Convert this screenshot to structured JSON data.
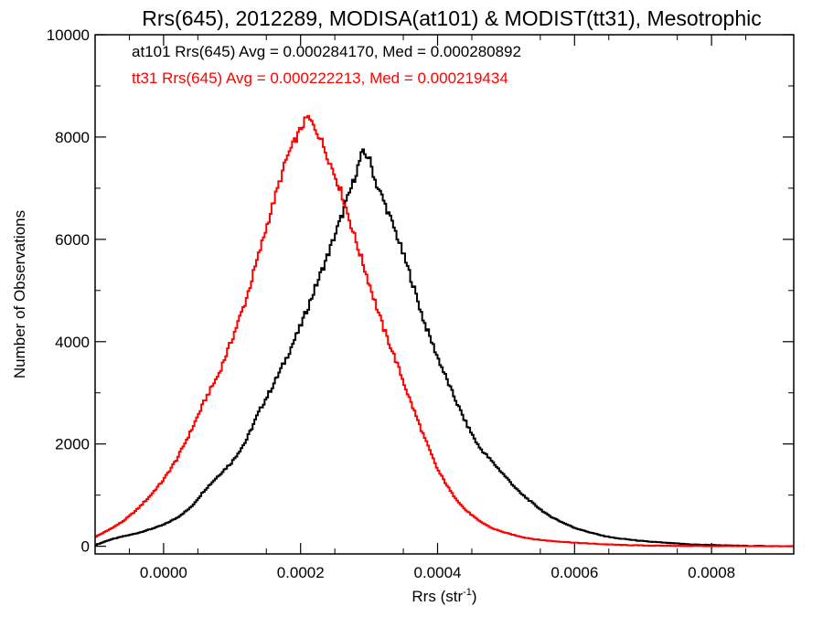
{
  "chart_data": {
    "type": "line",
    "step": true,
    "title": "Rrs(645), 2012289, MODISA(at101) & MODIST(tt31), Mesotrophic",
    "xlabel_main": "Rrs (str",
    "xlabel_sup": "-1",
    "xlabel_end": ")",
    "ylabel": "Number of Observations",
    "xlim": [
      -0.0001,
      0.00092
    ],
    "ylim": [
      -150,
      10000
    ],
    "xticks": [
      0.0,
      0.0002,
      0.0004,
      0.0006,
      0.0008
    ],
    "xtick_labels": [
      "0.0000",
      "0.0002",
      "0.0004",
      "0.0006",
      "0.0008"
    ],
    "yticks": [
      0,
      2000,
      4000,
      6000,
      8000,
      10000
    ],
    "ytick_labels": [
      "0",
      "2000",
      "4000",
      "6000",
      "8000",
      "10000"
    ],
    "grid": false,
    "legend_position": "top-left",
    "series": [
      {
        "name": "at101",
        "legend": "at101 Rrs(645) Avg = 0.000284170, Med = 0.000280892",
        "color": "#000000",
        "points": [
          [
            -0.0001,
            20
          ],
          [
            -8e-05,
            120
          ],
          [
            -6e-05,
            190
          ],
          [
            -4e-05,
            250
          ],
          [
            -2e-05,
            330
          ],
          [
            0.0,
            420
          ],
          [
            2e-05,
            560
          ],
          [
            4e-05,
            760
          ],
          [
            6e-05,
            1100
          ],
          [
            8e-05,
            1380
          ],
          [
            0.0001,
            1650
          ],
          [
            0.00012,
            2050
          ],
          [
            0.00014,
            2650
          ],
          [
            0.00016,
            3150
          ],
          [
            0.00018,
            3700
          ],
          [
            0.0002,
            4300
          ],
          [
            0.00022,
            5000
          ],
          [
            0.00024,
            5700
          ],
          [
            0.00026,
            6450
          ],
          [
            0.00028,
            7250
          ],
          [
            0.00029,
            7700
          ],
          [
            0.0003,
            7600
          ],
          [
            0.00031,
            7100
          ],
          [
            0.00032,
            6800
          ],
          [
            0.00034,
            6100
          ],
          [
            0.00036,
            5300
          ],
          [
            0.00038,
            4400
          ],
          [
            0.0004,
            3700
          ],
          [
            0.00042,
            3050
          ],
          [
            0.00044,
            2450
          ],
          [
            0.00046,
            1950
          ],
          [
            0.00048,
            1650
          ],
          [
            0.0005,
            1350
          ],
          [
            0.00052,
            1050
          ],
          [
            0.00054,
            830
          ],
          [
            0.00056,
            620
          ],
          [
            0.00058,
            480
          ],
          [
            0.0006,
            360
          ],
          [
            0.00062,
            280
          ],
          [
            0.00064,
            210
          ],
          [
            0.00066,
            160
          ],
          [
            0.00068,
            130
          ],
          [
            0.0007,
            100
          ],
          [
            0.00072,
            80
          ],
          [
            0.00074,
            60
          ],
          [
            0.00076,
            45
          ],
          [
            0.00078,
            30
          ],
          [
            0.0008,
            25
          ],
          [
            0.00082,
            15
          ],
          [
            0.00084,
            10
          ],
          [
            0.00086,
            5
          ],
          [
            0.00088,
            5
          ],
          [
            0.0009,
            0
          ],
          [
            0.00092,
            0
          ]
        ]
      },
      {
        "name": "tt31",
        "legend": "tt31 Rrs(645) Avg = 0.000222213, Med = 0.000219434",
        "color": "#ff0000",
        "points": [
          [
            -0.0001,
            180
          ],
          [
            -8e-05,
            320
          ],
          [
            -6e-05,
            480
          ],
          [
            -4e-05,
            700
          ],
          [
            -2e-05,
            980
          ],
          [
            0.0,
            1300
          ],
          [
            2e-05,
            1720
          ],
          [
            4e-05,
            2250
          ],
          [
            6e-05,
            2850
          ],
          [
            8e-05,
            3350
          ],
          [
            0.0001,
            4050
          ],
          [
            0.00012,
            4800
          ],
          [
            0.00014,
            5750
          ],
          [
            0.00016,
            6700
          ],
          [
            0.00018,
            7600
          ],
          [
            0.0002,
            8150
          ],
          [
            0.00021,
            8400
          ],
          [
            0.00022,
            8200
          ],
          [
            0.00023,
            7950
          ],
          [
            0.00024,
            7600
          ],
          [
            0.00026,
            6900
          ],
          [
            0.00028,
            6000
          ],
          [
            0.0003,
            5150
          ],
          [
            0.00032,
            4300
          ],
          [
            0.00034,
            3600
          ],
          [
            0.00036,
            2850
          ],
          [
            0.00038,
            2150
          ],
          [
            0.0004,
            1500
          ],
          [
            0.00042,
            1050
          ],
          [
            0.00044,
            720
          ],
          [
            0.00046,
            500
          ],
          [
            0.00048,
            350
          ],
          [
            0.0005,
            260
          ],
          [
            0.00052,
            190
          ],
          [
            0.00054,
            140
          ],
          [
            0.00056,
            110
          ],
          [
            0.00058,
            90
          ],
          [
            0.0006,
            70
          ],
          [
            0.00062,
            55
          ],
          [
            0.00064,
            40
          ],
          [
            0.00066,
            30
          ],
          [
            0.00068,
            20
          ],
          [
            0.0007,
            15
          ],
          [
            0.00072,
            10
          ],
          [
            0.00074,
            10
          ],
          [
            0.00076,
            5
          ],
          [
            0.00078,
            5
          ],
          [
            0.0008,
            0
          ],
          [
            0.00092,
            0
          ]
        ]
      }
    ]
  }
}
